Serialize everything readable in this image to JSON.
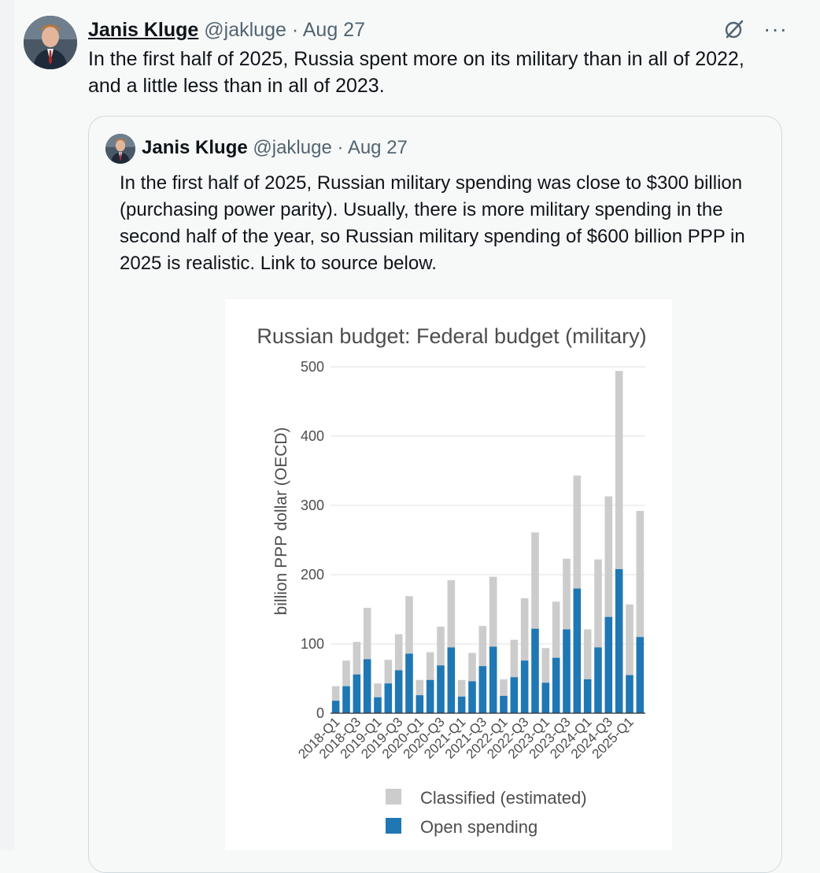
{
  "tweet": {
    "author_name": "Janis Kluge",
    "handle": "@jakluge",
    "separator": "·",
    "date": "Aug 27",
    "text": "In the first half of 2025, Russia spent more on its military than in all of 2022, and a little less than in all of 2023.",
    "more_label": "···"
  },
  "quoted": {
    "author_name": "Janis Kluge",
    "handle": "@jakluge",
    "separator": "·",
    "date": "Aug 27",
    "text": "In the first half of 2025, Russian military spending was close to $300 billion (purchasing power parity). Usually, there is more military spending in the second half of the year, so Russian military spending of $600 billion PPP in 2025 is realistic. Link to source below."
  },
  "colors": {
    "classified": "#cccccc",
    "open": "#1f77b4",
    "grid": "#ebebeb"
  },
  "chart_data": {
    "type": "bar",
    "stacked": true,
    "title": "Russian budget: Federal budget (military)",
    "ylabel": "billion PPP dollar (OECD)",
    "ylim": [
      0,
      500
    ],
    "yticks": [
      0,
      100,
      200,
      300,
      400,
      500
    ],
    "categories": [
      "2018-Q1",
      "2018-Q2",
      "2018-Q3",
      "2018-Q4",
      "2019-Q1",
      "2019-Q2",
      "2019-Q3",
      "2019-Q4",
      "2020-Q1",
      "2020-Q2",
      "2020-Q3",
      "2020-Q4",
      "2021-Q1",
      "2021-Q2",
      "2021-Q3",
      "2021-Q4",
      "2022-Q1",
      "2022-Q2",
      "2022-Q3",
      "2022-Q4",
      "2023-Q1",
      "2023-Q2",
      "2023-Q3",
      "2023-Q4",
      "2024-Q1",
      "2024-Q2",
      "2024-Q3",
      "2024-Q4",
      "2025-Q1",
      "2025-Q2"
    ],
    "tick_labels": [
      "2018-Q1",
      "2018-Q3",
      "2019-Q1",
      "2019-Q3",
      "2020-Q1",
      "2020-Q3",
      "2021-Q1",
      "2021-Q3",
      "2022-Q1",
      "2022-Q3",
      "2023-Q1",
      "2023-Q3",
      "2024-Q1",
      "2024-Q3",
      "2025-Q1"
    ],
    "series": [
      {
        "name": "Open spending",
        "values": [
          18,
          39,
          56,
          78,
          23,
          43,
          62,
          86,
          26,
          48,
          69,
          95,
          24,
          46,
          68,
          96,
          25,
          52,
          76,
          122,
          44,
          80,
          121,
          180,
          49,
          95,
          139,
          208,
          55,
          110
        ]
      },
      {
        "name": "Classified (estimated)",
        "values": [
          21,
          37,
          47,
          74,
          20,
          34,
          52,
          83,
          22,
          40,
          56,
          97,
          24,
          41,
          58,
          101,
          24,
          54,
          90,
          139,
          50,
          81,
          102,
          163,
          72,
          127,
          174,
          286,
          102,
          182
        ]
      }
    ],
    "legend": {
      "position": "bottom",
      "entries": [
        "Classified (estimated)",
        "Open spending"
      ]
    }
  }
}
